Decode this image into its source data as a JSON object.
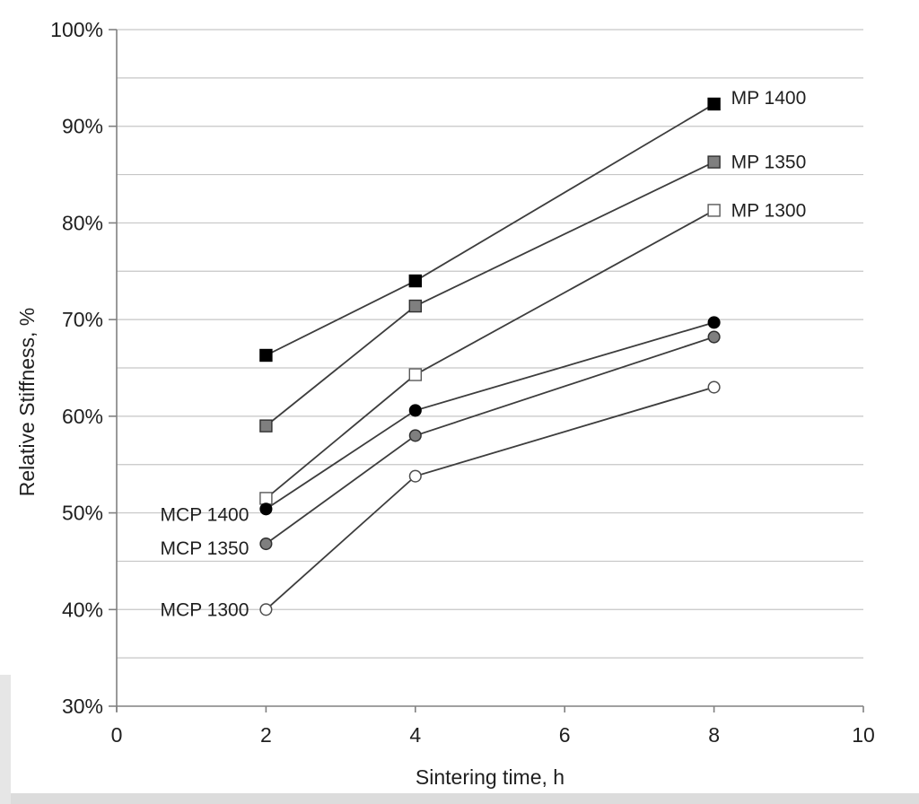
{
  "page": {
    "background": "#ffffff"
  },
  "chart_data": {
    "type": "line",
    "title": "",
    "xlabel": "Sintering time, h",
    "ylabel": "Relative Stiffness, %",
    "xlim": [
      0,
      10
    ],
    "ylim": [
      30,
      100
    ],
    "x_ticks": [
      0,
      2,
      4,
      6,
      8,
      10
    ],
    "x_tick_labels": [
      "0",
      "2",
      "4",
      "6",
      "8",
      "10"
    ],
    "y_tick_values": [
      30,
      40,
      50,
      60,
      70,
      80,
      90,
      100
    ],
    "y_tick_labels": [
      "30%",
      "40%",
      "50%",
      "60%",
      "70%",
      "80%",
      "90%",
      "100%"
    ],
    "y_minor_step": 5,
    "grid": "horizontal-every-5pct",
    "legend_position": "inline-series-labels",
    "x": [
      2,
      4,
      8
    ],
    "series": [
      {
        "name": "MP 1400",
        "marker": "square",
        "fill": "#000000",
        "stroke": "#000000",
        "values": [
          66.3,
          74.0,
          92.3
        ],
        "label_side": "right",
        "label_dy": -7
      },
      {
        "name": "MP 1350",
        "marker": "square",
        "fill": "#7f7f7f",
        "stroke": "#303030",
        "values": [
          59.0,
          71.4,
          86.3
        ],
        "label_side": "right",
        "label_dy": 0
      },
      {
        "name": "MP 1300",
        "marker": "square",
        "fill": "#ffffff",
        "stroke": "#595959",
        "values": [
          51.5,
          64.3,
          81.3
        ],
        "label_side": "right",
        "label_dy": 0
      },
      {
        "name": "MCP 1400",
        "marker": "circle",
        "fill": "#000000",
        "stroke": "#000000",
        "values": [
          50.4,
          60.6,
          69.7
        ],
        "label_side": "left",
        "label_dy": 6
      },
      {
        "name": "MCP 1350",
        "marker": "circle",
        "fill": "#7f7f7f",
        "stroke": "#303030",
        "values": [
          46.8,
          58.0,
          68.2
        ],
        "label_side": "left",
        "label_dy": 5
      },
      {
        "name": "MCP 1300",
        "marker": "circle",
        "fill": "#ffffff",
        "stroke": "#4d4d4d",
        "values": [
          40.0,
          53.8,
          63.0
        ],
        "label_side": "left",
        "label_dy": 0
      }
    ],
    "colors": {
      "line": "#3d3d3d",
      "grid": "#c6c6c6",
      "axis": "#808080",
      "text": "#1f1f1f",
      "scan_edge": "#dcdcdc"
    }
  }
}
